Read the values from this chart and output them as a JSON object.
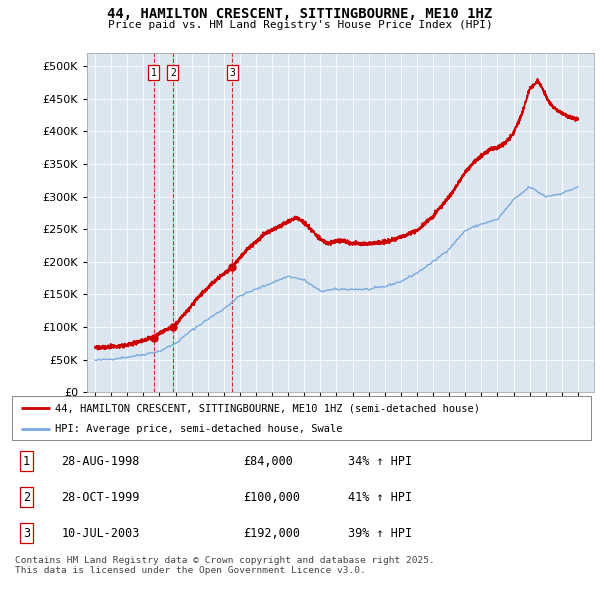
{
  "title": "44, HAMILTON CRESCENT, SITTINGBOURNE, ME10 1HZ",
  "subtitle": "Price paid vs. HM Land Registry's House Price Index (HPI)",
  "legend_line1": "44, HAMILTON CRESCENT, SITTINGBOURNE, ME10 1HZ (semi-detached house)",
  "legend_line2": "HPI: Average price, semi-detached house, Swale",
  "footer": "Contains HM Land Registry data © Crown copyright and database right 2025.\nThis data is licensed under the Open Government Licence v3.0.",
  "house_color": "#cc0000",
  "hpi_color": "#7aaadd",
  "background_color": "#dce6f0",
  "transactions": [
    {
      "num": 1,
      "date_label": "28-AUG-1998",
      "price": 84000,
      "pct": "34%",
      "year_x": 1998.65
    },
    {
      "num": 2,
      "date_label": "28-OCT-1999",
      "price": 100000,
      "pct": "41%",
      "year_x": 1999.83
    },
    {
      "num": 3,
      "date_label": "10-JUL-2003",
      "price": 192000,
      "pct": "39%",
      "year_x": 2003.52
    }
  ],
  "ylim": [
    0,
    520000
  ],
  "yticks": [
    0,
    50000,
    100000,
    150000,
    200000,
    250000,
    300000,
    350000,
    400000,
    450000,
    500000
  ],
  "xlim": [
    1994.5,
    2026.0
  ],
  "xticks": [
    1995,
    1996,
    1997,
    1998,
    1999,
    2000,
    2001,
    2002,
    2003,
    2004,
    2005,
    2006,
    2007,
    2008,
    2009,
    2010,
    2011,
    2012,
    2013,
    2014,
    2015,
    2016,
    2017,
    2018,
    2019,
    2020,
    2021,
    2022,
    2023,
    2024,
    2025
  ]
}
